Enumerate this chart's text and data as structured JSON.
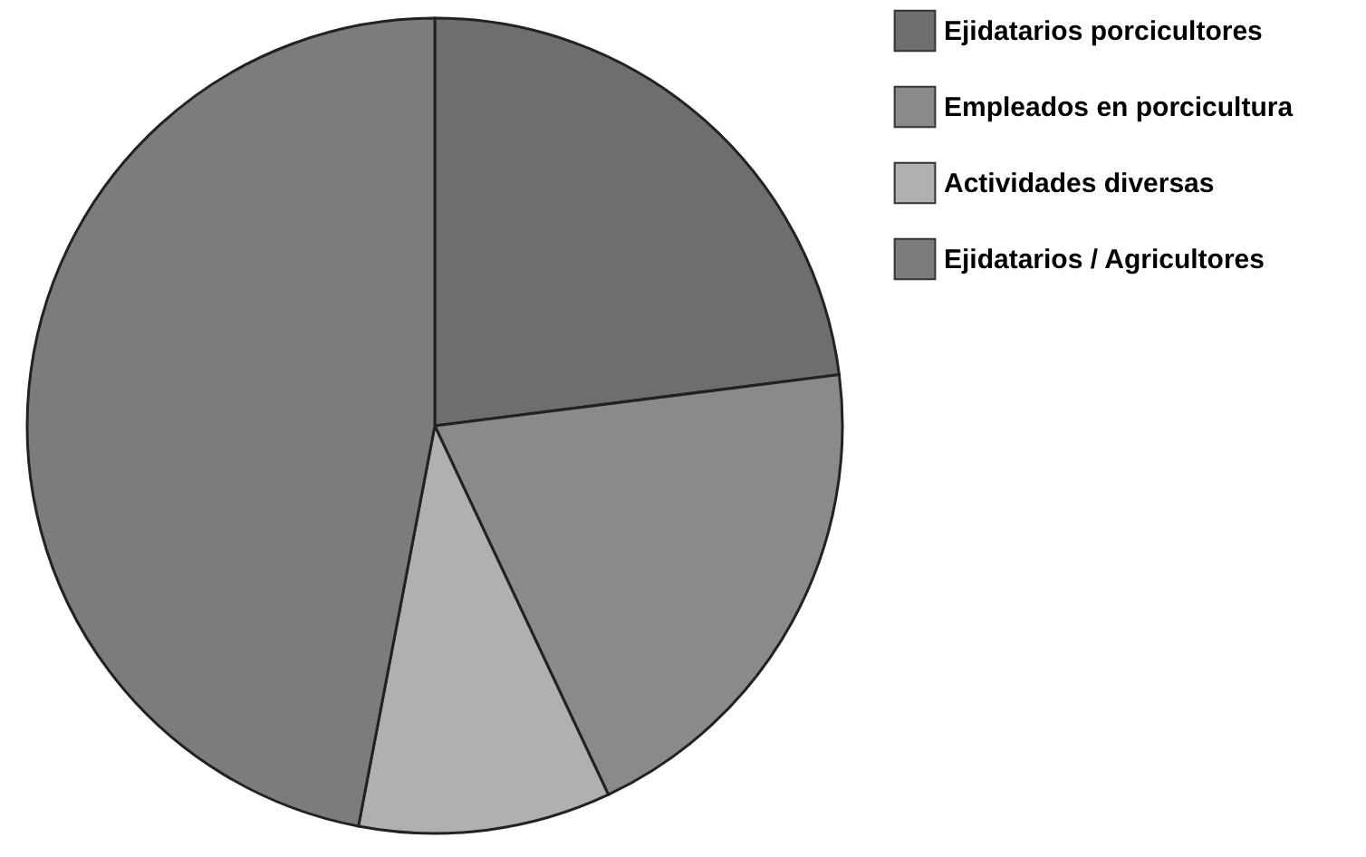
{
  "chart_data": {
    "type": "pie",
    "categories": [
      "Ejidatarios porcicultores",
      "Empleados en porcicultura",
      "Actividades diversas",
      "Ejidatarios / Agricultores"
    ],
    "values": [
      23,
      20,
      10,
      47
    ],
    "colors": [
      "#6e6e6e",
      "#8a8a8a",
      "#b0b0b0",
      "#7c7c7c"
    ],
    "legend": "right"
  }
}
